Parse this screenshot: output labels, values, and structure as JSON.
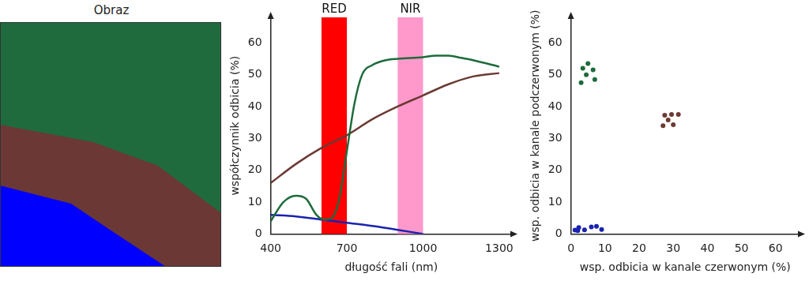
{
  "image": {
    "title": "Obraz",
    "regions": [
      {
        "color": "#1f6b3d"
      },
      {
        "color": "#6b3836"
      },
      {
        "color": "#0000ff"
      }
    ]
  },
  "chart_data": [
    {
      "type": "line",
      "x_label": "długość fali (nm)",
      "y_label": "współczynnik odbicia (%)",
      "xlim": [
        400,
        1350
      ],
      "xticks": [
        400,
        700,
        1000,
        1300
      ],
      "ylim": [
        0,
        68
      ],
      "yticks": [
        0,
        10,
        20,
        30,
        40,
        50,
        60
      ],
      "grid": false,
      "bands": [
        {
          "label": "RED",
          "range": [
            600,
            700
          ],
          "color": "#ff0000"
        },
        {
          "label": "NIR",
          "range": [
            900,
            1000
          ],
          "color": "#ff99cc"
        }
      ],
      "series": [
        {
          "color": "#1e6b3c",
          "x": [
            400,
            450,
            500,
            540,
            580,
            610,
            640,
            670,
            700,
            730,
            760,
            800,
            850,
            900,
            1000,
            1050,
            1100,
            1150,
            1200,
            1300
          ],
          "values": [
            4,
            10,
            12,
            11,
            6,
            4.5,
            5,
            11,
            26,
            41,
            50,
            53,
            54.5,
            55,
            55.5,
            56,
            56,
            55.3,
            54.5,
            52.5
          ]
        },
        {
          "color": "#6b3a33",
          "x": [
            400,
            500,
            600,
            700,
            800,
            900,
            1000,
            1100,
            1200,
            1300
          ],
          "values": [
            16,
            22,
            27,
            31,
            36,
            40,
            43.5,
            47,
            49.5,
            50.5
          ]
        },
        {
          "color": "#1a22b0",
          "x": [
            400,
            500,
            600,
            700,
            800,
            900,
            1000
          ],
          "values": [
            6,
            5.5,
            4.5,
            3.5,
            2.5,
            1.3,
            0
          ]
        }
      ]
    },
    {
      "type": "scatter",
      "x_label": "wsp. odbicia w kanale czerwonym (%)",
      "y_label": "wsp. odbicia w kanale podczerwonym (%)",
      "xlim": [
        0,
        67
      ],
      "xticks": [
        0,
        10,
        20,
        30,
        40,
        50,
        60
      ],
      "ylim": [
        0,
        68
      ],
      "yticks": [
        0,
        10,
        20,
        30,
        40,
        50,
        60
      ],
      "grid": false,
      "series": [
        {
          "color": "#1e6b3c",
          "x": [
            3.5,
            5,
            6.5,
            4.5,
            3,
            7
          ],
          "values": [
            52,
            53.5,
            51.5,
            50,
            47.5,
            48.5
          ]
        },
        {
          "color": "#6b3a33",
          "x": [
            27.5,
            29.5,
            31.5,
            28.5,
            27,
            30
          ],
          "values": [
            37.3,
            37.5,
            37.5,
            35.8,
            34,
            34.3
          ]
        },
        {
          "color": "#1a22b0",
          "x": [
            1.2,
            2.3,
            4,
            6,
            7.5,
            9,
            2
          ],
          "values": [
            1.2,
            2,
            1.3,
            2.2,
            2.4,
            1.4,
            1
          ]
        }
      ]
    }
  ]
}
